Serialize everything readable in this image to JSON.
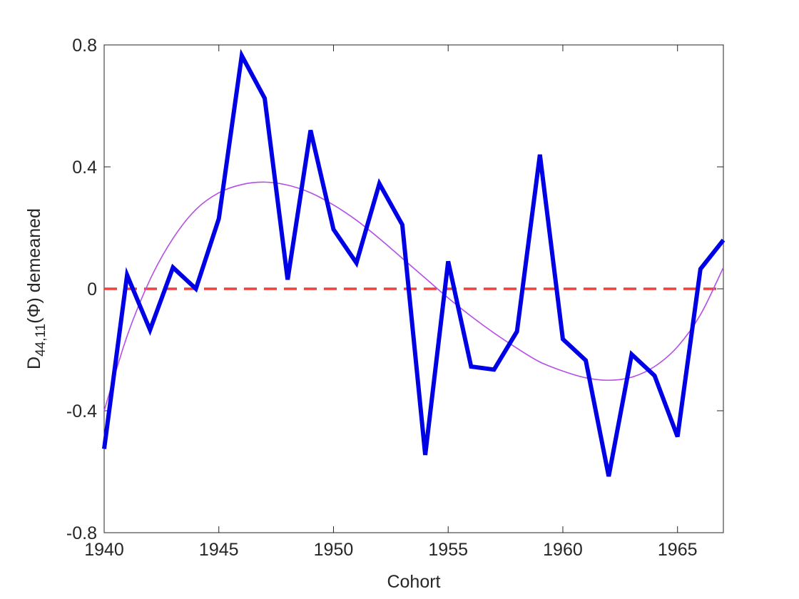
{
  "chart_data": {
    "type": "line",
    "title": "",
    "xlabel": "Cohort",
    "ylabel": {
      "main": "D",
      "subscript": "44,11",
      "rest": "(Φ) demeaned"
    },
    "xlim": [
      1940,
      1967
    ],
    "ylim": [
      -0.8,
      0.8
    ],
    "xticks": [
      1940,
      1945,
      1950,
      1955,
      1960,
      1965
    ],
    "xtick_labels": [
      "1940",
      "1945",
      "1950",
      "1955",
      "1960",
      "1965"
    ],
    "yticks": [
      -0.8,
      -0.4,
      0,
      0.4,
      0.8
    ],
    "ytick_labels": [
      "-0.8",
      "-0.4",
      "0",
      "0.4",
      "0.8"
    ],
    "grid": false,
    "series": [
      {
        "style": "thick-solid",
        "color": "#0000e6",
        "x": [
          1940,
          1941,
          1942,
          1943,
          1944,
          1945,
          1946,
          1947,
          1948,
          1949,
          1950,
          1951,
          1952,
          1953,
          1954,
          1955,
          1956,
          1957,
          1958,
          1959,
          1960,
          1961,
          1962,
          1963,
          1964,
          1965,
          1966,
          1967
        ],
        "y": [
          -0.525,
          0.045,
          -0.135,
          0.07,
          0.0,
          0.23,
          0.765,
          0.625,
          0.03,
          0.52,
          0.195,
          0.085,
          0.345,
          0.21,
          -0.545,
          0.09,
          -0.255,
          -0.265,
          -0.14,
          0.44,
          -0.165,
          -0.235,
          -0.615,
          -0.215,
          -0.285,
          -0.485,
          0.065,
          0.16
        ]
      },
      {
        "style": "thin-smooth-fit",
        "color": "#b44ee6",
        "x": [
          1940,
          1941,
          1942,
          1943,
          1944,
          1945,
          1946,
          1947,
          1948,
          1949,
          1950,
          1951,
          1952,
          1953,
          1954,
          1955,
          1956,
          1957,
          1958,
          1959,
          1960,
          1961,
          1962,
          1963,
          1964,
          1965,
          1966,
          1967
        ],
        "y": [
          -0.4,
          -0.155,
          0.03,
          0.165,
          0.26,
          0.315,
          0.342,
          0.35,
          0.34,
          0.315,
          0.275,
          0.225,
          0.165,
          0.1,
          0.035,
          -0.03,
          -0.09,
          -0.145,
          -0.195,
          -0.24,
          -0.27,
          -0.292,
          -0.3,
          -0.29,
          -0.255,
          -0.19,
          -0.085,
          0.07
        ]
      },
      {
        "style": "dashed-reference",
        "color": "#f0403c",
        "x": [
          1940,
          1967
        ],
        "y": [
          0,
          0
        ]
      }
    ]
  }
}
